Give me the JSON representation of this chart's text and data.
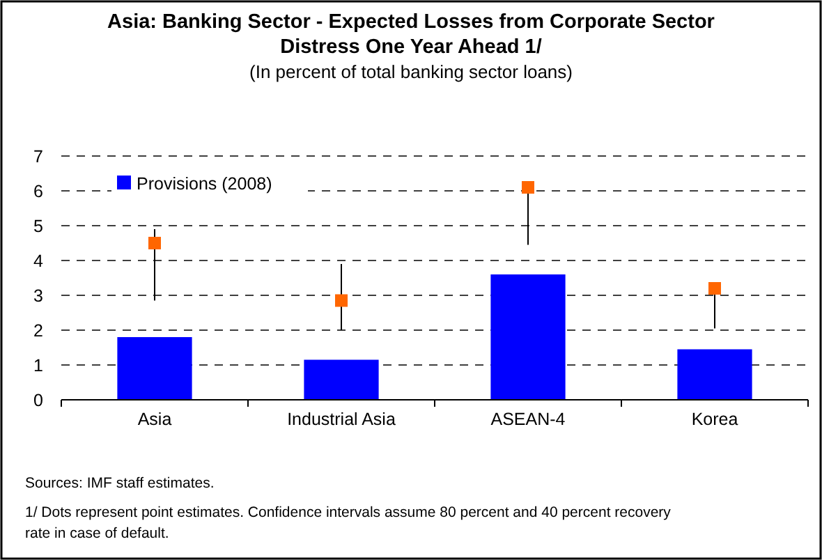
{
  "chart_data": {
    "type": "bar",
    "title": "Asia: Banking Sector - Expected Losses from Corporate Sector Distress One Year Ahead 1/",
    "subtitle": "(In percent of total banking sector loans)",
    "categories": [
      "Asia",
      "Industrial Asia",
      "ASEAN-4",
      "Korea"
    ],
    "series": [
      {
        "name": "Provisions (2008)",
        "color": "#0000ff",
        "values": [
          1.8,
          1.15,
          3.6,
          1.45
        ]
      },
      {
        "type": "scatter",
        "color": "#ff6600",
        "marker": "square",
        "x": [
          "Asia",
          "Industrial Asia",
          "ASEAN-4",
          "Korea"
        ],
        "values": [
          4.5,
          2.85,
          6.1,
          3.2
        ],
        "errors": [
          [
            2.85,
            4.9
          ],
          [
            2.0,
            3.9
          ],
          [
            4.45,
            6.1
          ],
          [
            2.05,
            3.2
          ]
        ]
      }
    ],
    "ylim": [
      0,
      7
    ],
    "yticks": [
      0,
      1,
      2,
      3,
      4,
      5,
      6,
      7
    ],
    "grid": "y",
    "legend": "top left",
    "annotations": [
      "Sources: IMF staff estimates.",
      "1/ Dots represent point estimates. Confidence intervals assume 80 percent and 40 percent recovery rate in case of default."
    ]
  }
}
